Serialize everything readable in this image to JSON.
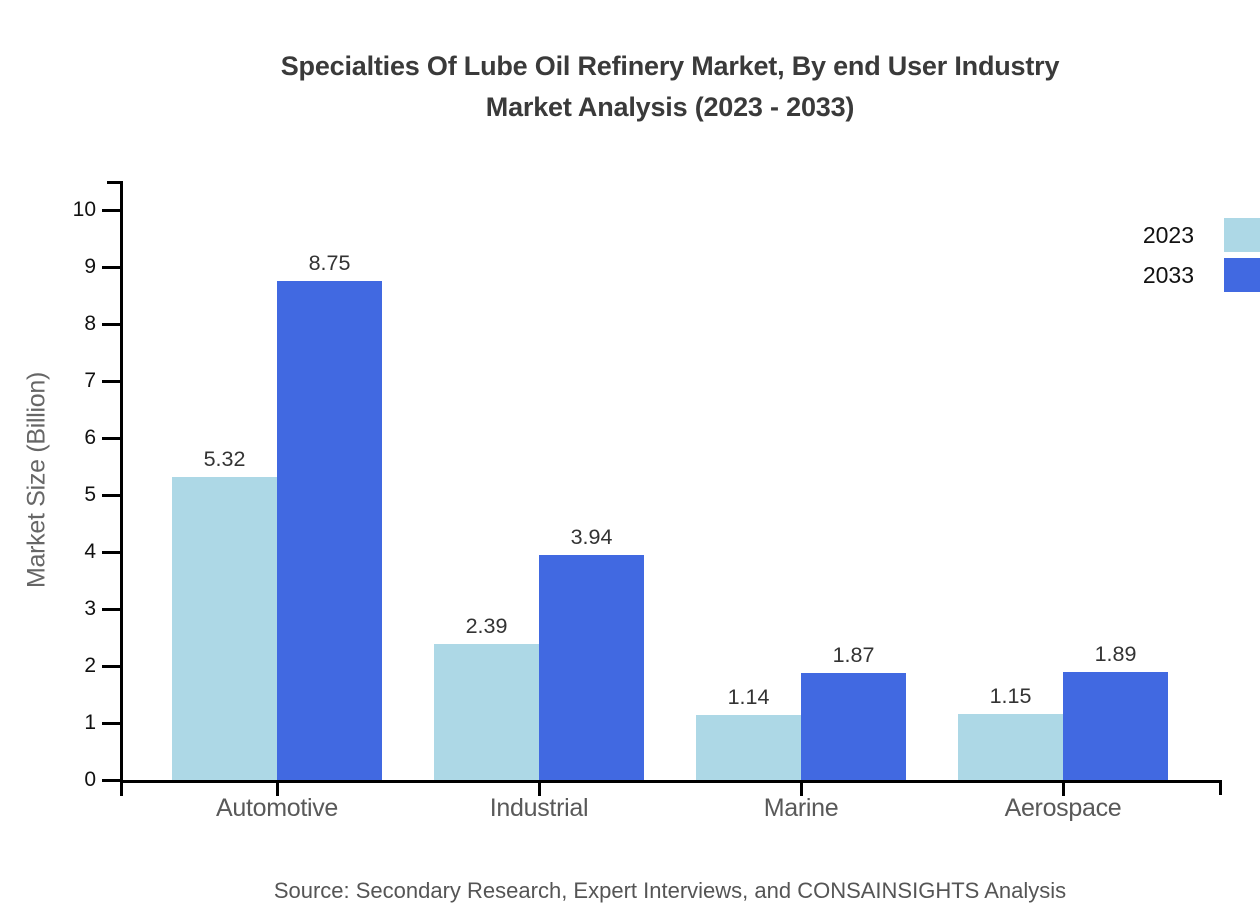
{
  "source_note": "Source: Secondary Research, Expert Interviews, and CONSAINSIGHTS Analysis",
  "chart_data": {
    "type": "bar",
    "title": "Specialties Of Lube Oil Refinery Market, By end User Industry\nMarket Analysis (2023 - 2033)",
    "ylabel": "Market Size (Billion)",
    "xlabel": "",
    "categories": [
      "Automotive",
      "Industrial",
      "Marine",
      "Aerospace"
    ],
    "series": [
      {
        "name": "2023",
        "color": "#add8e6",
        "values": [
          5.32,
          2.39,
          1.14,
          1.15
        ]
      },
      {
        "name": "2033",
        "color": "#4169e1",
        "values": [
          8.75,
          3.94,
          1.87,
          1.89
        ]
      }
    ],
    "ylim": [
      0,
      10
    ],
    "ytick_step": 1,
    "grid": false,
    "value_labels": true,
    "legend_position": "top-right",
    "axis_color": "#000000",
    "text_colors": {
      "title": "#3a3a3a",
      "value_label": "#333333",
      "tick_label": "#111111",
      "category_label": "#595959",
      "axis_title": "#666666",
      "source": "#555555"
    }
  }
}
